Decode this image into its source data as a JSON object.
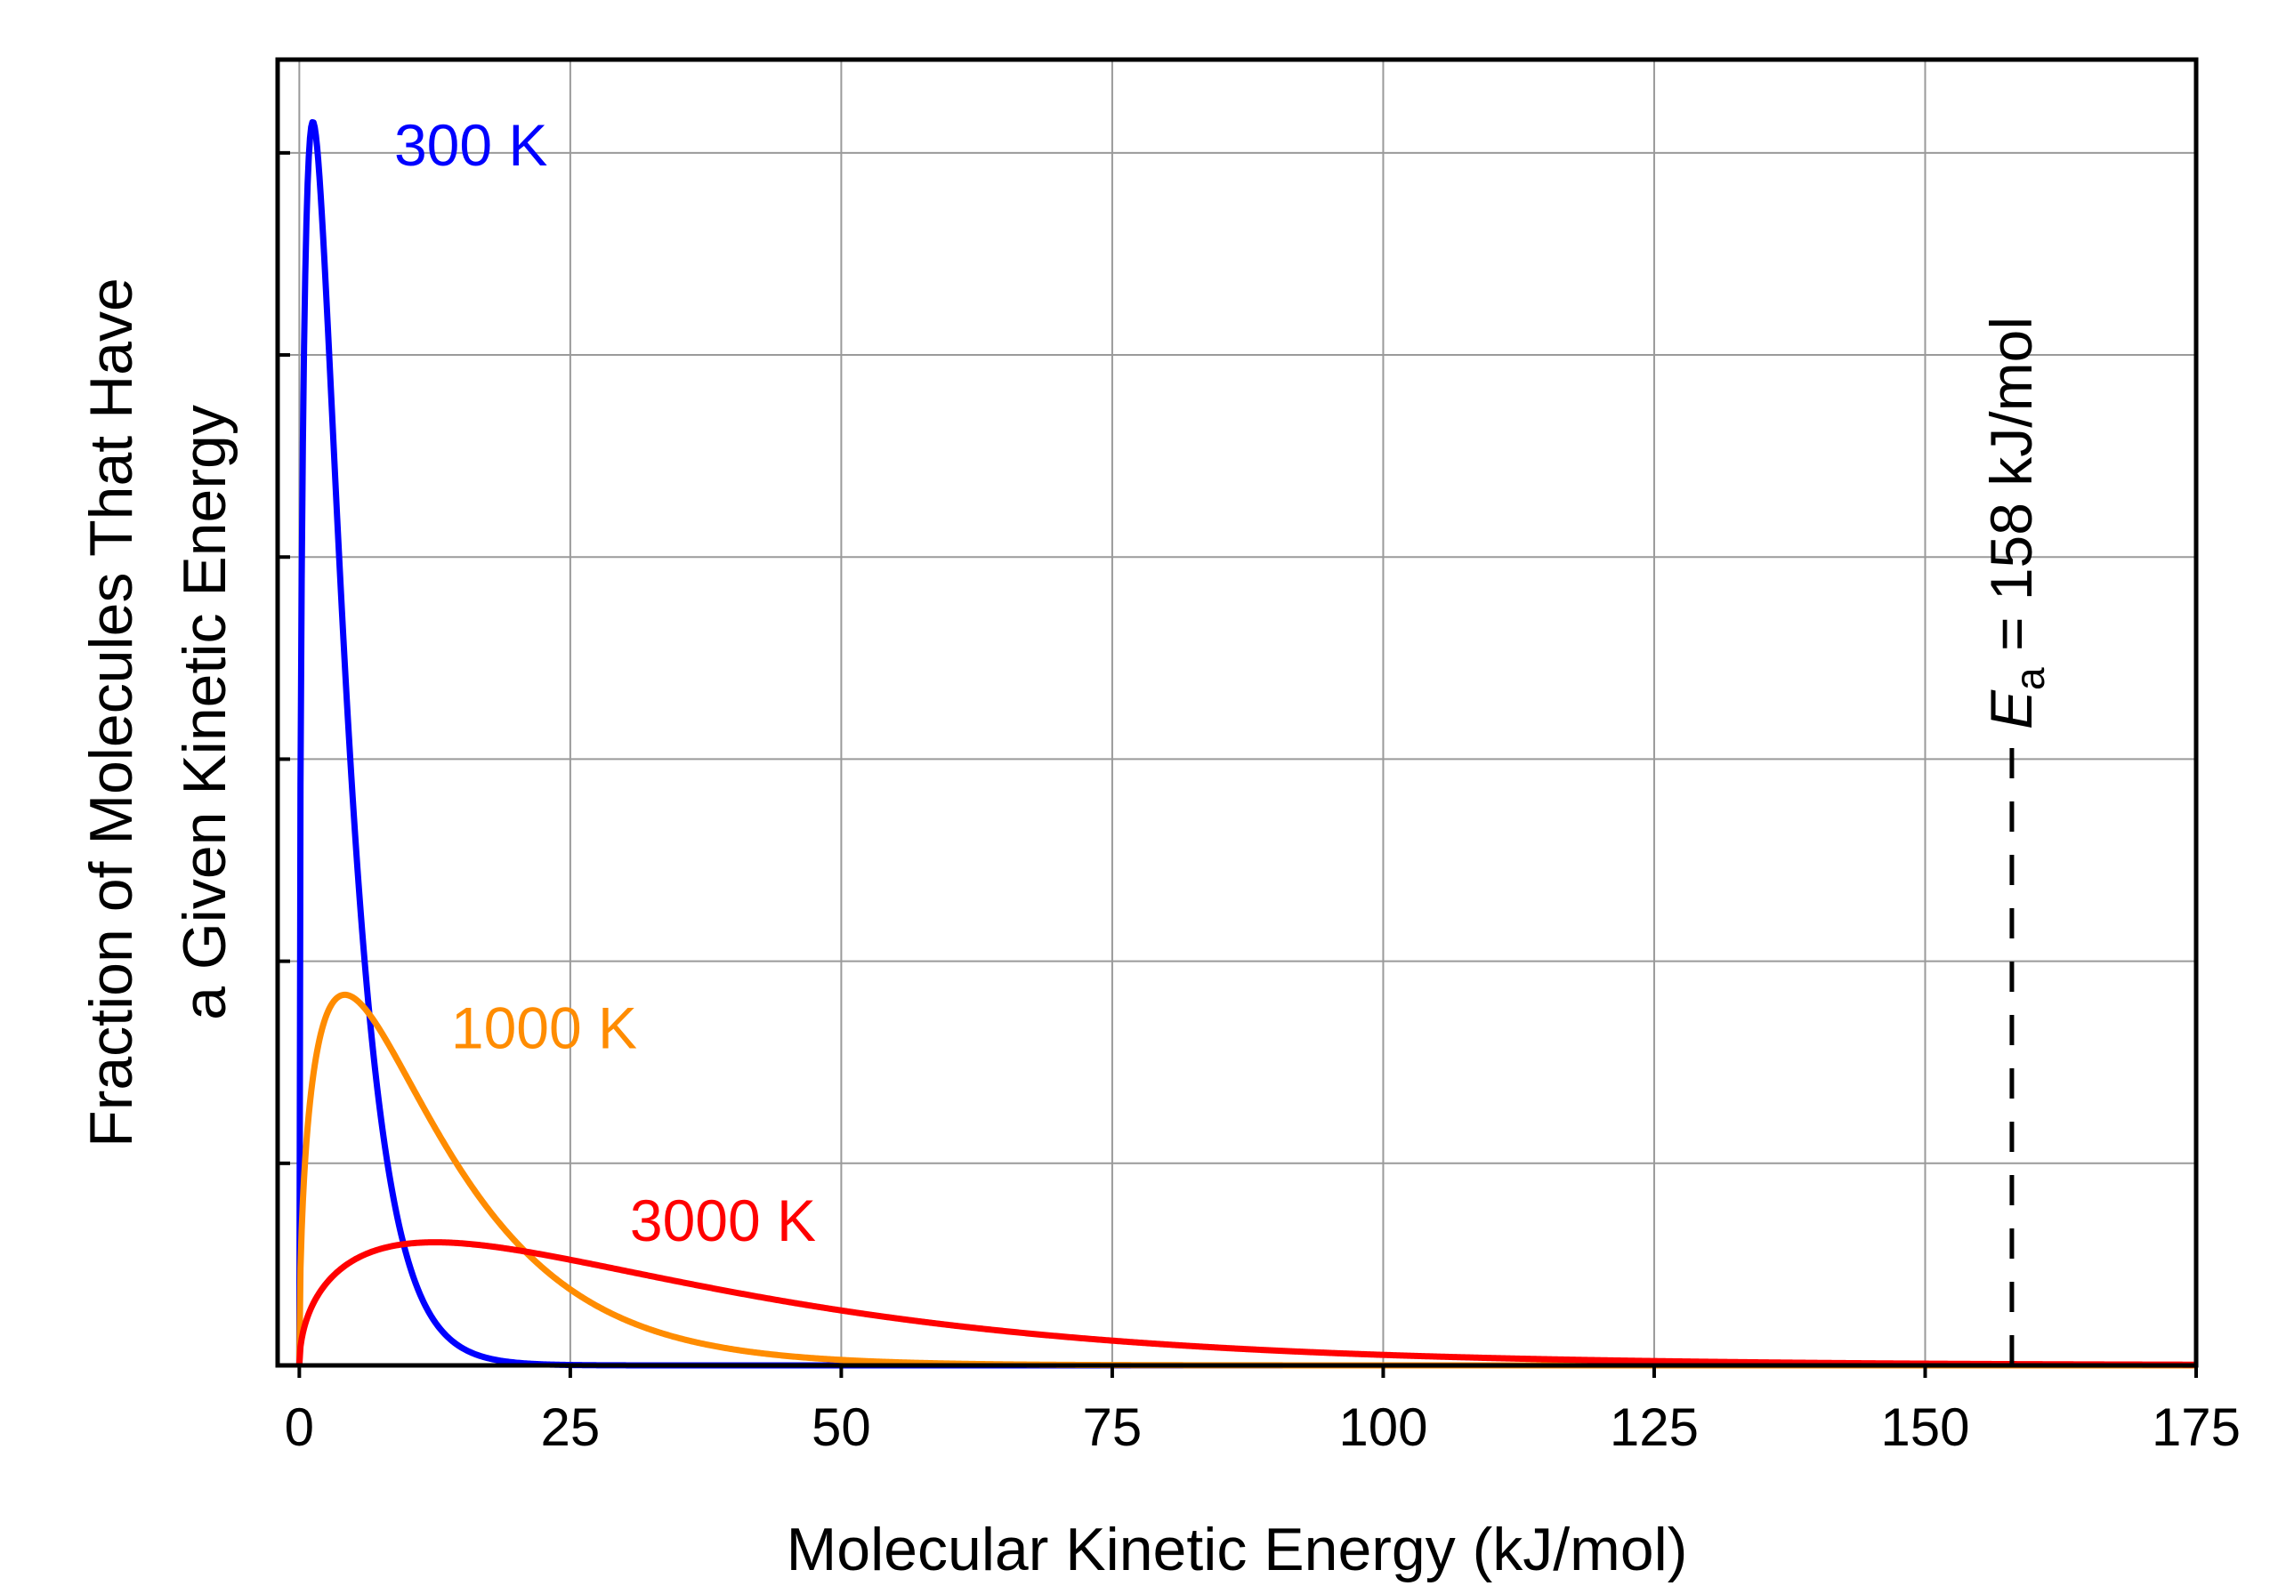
{
  "chart_data": {
    "type": "line",
    "title": "",
    "xlabel": "Molecular Kinetic Energy (kJ/mol)",
    "ylabel_line1": "Fraction of Molecules That Have",
    "ylabel_line2": "a Given Kinetic Energy",
    "xlim": [
      -2,
      175
    ],
    "ylim": [
      0,
      1.05
    ],
    "xticks": [
      0,
      25,
      50,
      75,
      100,
      125,
      150,
      175
    ],
    "xtick_labels": [
      "0",
      "25",
      "50",
      "75",
      "100",
      "125",
      "150",
      "175"
    ],
    "yticks": [
      0.1625,
      0.325,
      0.4875,
      0.65,
      0.8125,
      0.975
    ],
    "grid": true,
    "series": [
      {
        "name": "300 K",
        "label": "300 K",
        "temperature_K": 300,
        "color": "#0000ff",
        "peak_x": 1.25,
        "peak_y": 1.0
      },
      {
        "name": "1000 K",
        "label": "1000 K",
        "temperature_K": 1000,
        "color": "#ff8c00",
        "peak_x": 4.2,
        "peak_y": 0.298
      },
      {
        "name": "3000 K",
        "label": "3000 K",
        "temperature_K": 3000,
        "color": "#ff0000",
        "peak_x": 12.5,
        "peak_y": 0.099
      }
    ],
    "activation_energy": {
      "x": 158,
      "label_symbol": "E",
      "label_subscript": "a",
      "label_rest": " = 158 kJ/mol",
      "color": "#000000"
    }
  }
}
